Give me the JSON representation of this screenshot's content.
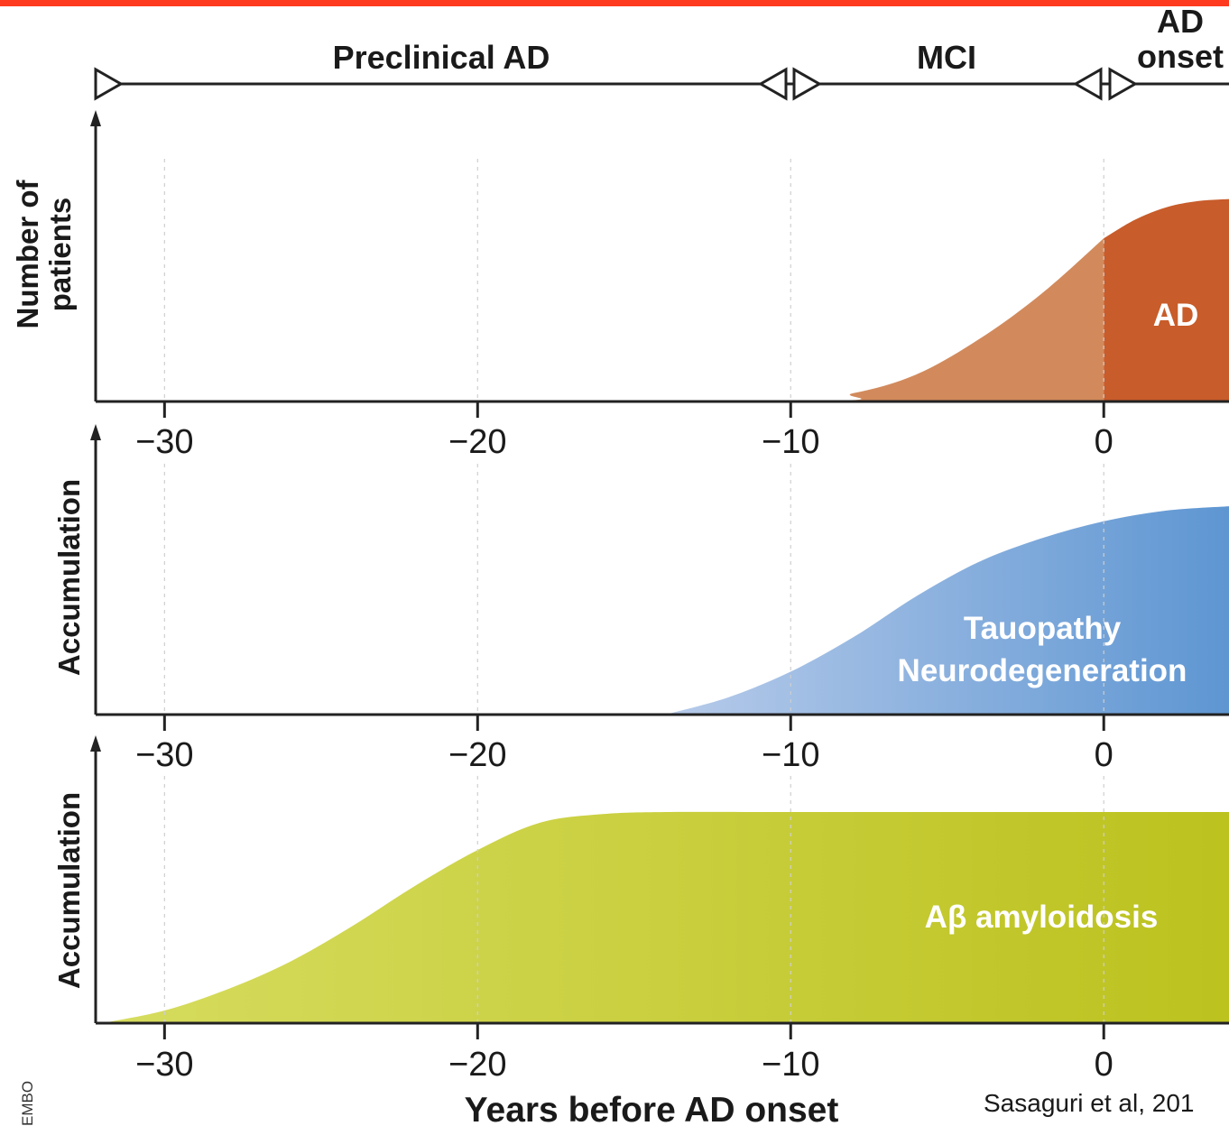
{
  "stages": {
    "preclinical": "Preclinical AD",
    "mci": "MCI",
    "ad_onset_line1": "AD",
    "ad_onset_line2": "onset"
  },
  "credit": "Sasaguri et al, 201",
  "side_note": "EMBO",
  "chart_data": [
    {
      "type": "area",
      "ylabel": "Number of patients",
      "ylabel_lines": [
        "Number of",
        "patients"
      ],
      "series": [
        {
          "name": "",
          "x": [
            -32,
            -10,
            -8,
            -6,
            -4,
            -2,
            0
          ],
          "y": [
            0,
            0,
            0.04,
            0.13,
            0.3,
            0.52,
            0.79
          ]
        },
        {
          "name": "AD",
          "x": [
            0,
            1,
            2,
            3,
            4
          ],
          "y": [
            0.79,
            0.88,
            0.94,
            0.97,
            0.98
          ]
        }
      ],
      "region_label": "AD",
      "xlim": [
        -32.2,
        4
      ],
      "ylim": [
        0,
        1
      ],
      "xticks": [
        -30,
        -20,
        -10,
        0
      ],
      "xtick_labels": [
        "−30",
        "−20",
        "−10",
        "0"
      ],
      "colors": {
        "before_onset": "#D28A5C",
        "after_onset": "#C85C2A"
      }
    },
    {
      "type": "area",
      "ylabel": "Accumulation",
      "series": [
        {
          "name": "Tauopathy Neurodegeneration",
          "x": [
            -14,
            -12,
            -10,
            -8,
            -6,
            -4,
            -2,
            0,
            2,
            4
          ],
          "y": [
            0,
            0.08,
            0.2,
            0.36,
            0.55,
            0.71,
            0.82,
            0.9,
            0.95,
            0.97
          ]
        }
      ],
      "region_label_lines": [
        "Tauopathy",
        "Neurodegeneration"
      ],
      "xlim": [
        -32.2,
        4
      ],
      "ylim": [
        0,
        1
      ],
      "xticks": [
        -30,
        -20,
        -10,
        0
      ],
      "xtick_labels": [
        "−30",
        "−20",
        "−10",
        "0"
      ],
      "colors": {
        "fill_start": "#B7CBEA",
        "fill_end": "#5E96D2"
      }
    },
    {
      "type": "area",
      "ylabel": "Accumulation",
      "xlabel": "Years before AD onset",
      "series": [
        {
          "name": "Aβ amyloidosis",
          "x": [
            -32,
            -30,
            -28,
            -26,
            -24,
            -22,
            -20,
            -18,
            -16,
            -14,
            -10,
            -5,
            0,
            4
          ],
          "y": [
            0,
            0.06,
            0.16,
            0.29,
            0.46,
            0.65,
            0.82,
            0.95,
            0.99,
            1,
            1,
            1,
            1,
            1
          ]
        }
      ],
      "region_label": "Aβ amyloidosis",
      "xlim": [
        -32.2,
        4
      ],
      "ylim": [
        0,
        1
      ],
      "xticks": [
        -30,
        -20,
        -10,
        0
      ],
      "xtick_labels": [
        "−30",
        "−20",
        "−10",
        "0"
      ],
      "colors": {
        "fill_start": "#D6DC5E",
        "fill_end": "#BCC21E"
      }
    }
  ],
  "colors": {
    "top_rule": "#FF3B1F"
  }
}
